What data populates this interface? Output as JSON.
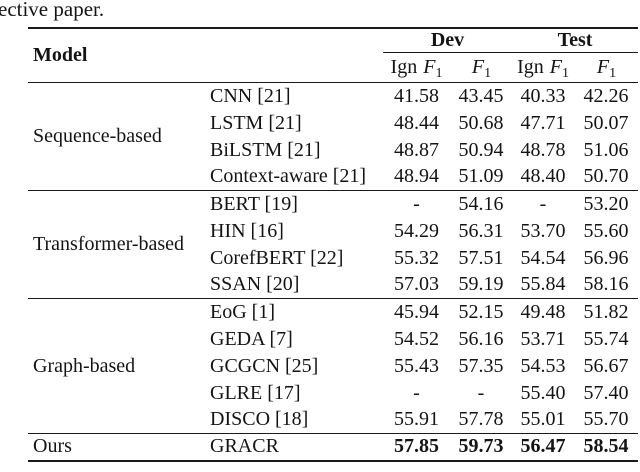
{
  "page": {
    "top_text": "ective paper."
  },
  "colors": {
    "background": "#ffffff",
    "text": "#141414",
    "rule": "#1a1a1a"
  },
  "table": {
    "header": {
      "model_label": "Model",
      "dev_label": "Dev",
      "test_label": "Test",
      "sub_headers": [
        {
          "name": "dev-ign-f1",
          "prefix": "Ign ",
          "symbol": "F",
          "sub": "1"
        },
        {
          "name": "dev-f1",
          "prefix": "",
          "symbol": "F",
          "sub": "1"
        },
        {
          "name": "test-ign-f1",
          "prefix": "Ign ",
          "symbol": "F",
          "sub": "1"
        },
        {
          "name": "test-f1",
          "prefix": "",
          "symbol": "F",
          "sub": "1"
        }
      ]
    },
    "groups": [
      {
        "name": "Sequence-based",
        "values_bold": false,
        "rows": [
          {
            "method": "CNN [21]",
            "values": [
              "41.58",
              "43.45",
              "40.33",
              "42.26"
            ]
          },
          {
            "method": "LSTM [21]",
            "values": [
              "48.44",
              "50.68",
              "47.71",
              "50.07"
            ]
          },
          {
            "method": "BiLSTM [21]",
            "values": [
              "48.87",
              "50.94",
              "48.78",
              "51.06"
            ]
          },
          {
            "method": "Context-aware [21]",
            "values": [
              "48.94",
              "51.09",
              "48.40",
              "50.70"
            ]
          }
        ]
      },
      {
        "name": "Transformer-based",
        "values_bold": false,
        "rows": [
          {
            "method": "BERT [19]",
            "values": [
              "-",
              "54.16",
              "-",
              "53.20"
            ]
          },
          {
            "method": "HIN [16]",
            "values": [
              "54.29",
              "56.31",
              "53.70",
              "55.60"
            ]
          },
          {
            "method": "CorefBERT [22]",
            "values": [
              "55.32",
              "57.51",
              "54.54",
              "56.96"
            ]
          },
          {
            "method": "SSAN [20]",
            "values": [
              "57.03",
              "59.19",
              "55.84",
              "58.16"
            ]
          }
        ]
      },
      {
        "name": "Graph-based",
        "values_bold": false,
        "rows": [
          {
            "method": "EoG [1]",
            "values": [
              "45.94",
              "52.15",
              "49.48",
              "51.82"
            ]
          },
          {
            "method": "GEDA [7]",
            "values": [
              "54.52",
              "56.16",
              "53.71",
              "55.74"
            ]
          },
          {
            "method": "GCGCN [25]",
            "values": [
              "55.43",
              "57.35",
              "54.53",
              "56.67"
            ]
          },
          {
            "method": "GLRE [17]",
            "values": [
              "-",
              "-",
              "55.40",
              "57.40"
            ]
          },
          {
            "method": "DISCO [18]",
            "values": [
              "55.91",
              "57.78",
              "55.01",
              "55.70"
            ]
          }
        ]
      },
      {
        "name": "Ours",
        "values_bold": true,
        "rows": [
          {
            "method": "GRACR",
            "values": [
              "57.85",
              "59.73",
              "56.47",
              "58.54"
            ]
          }
        ]
      }
    ]
  }
}
